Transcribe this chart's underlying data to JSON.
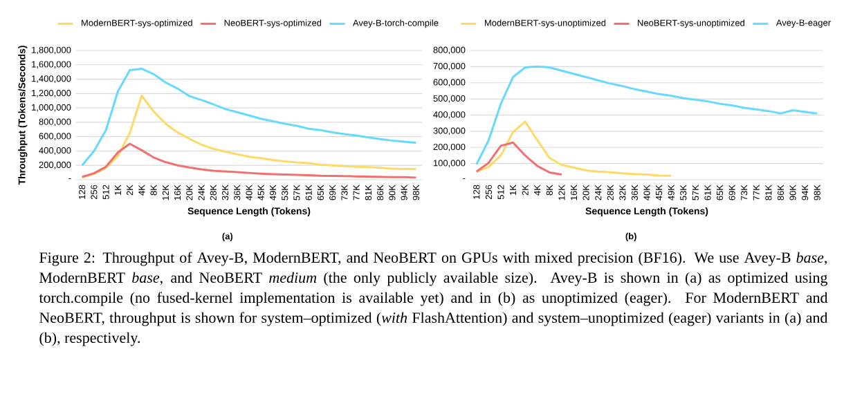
{
  "chart_data": [
    {
      "type": "line",
      "title": "(a)",
      "xlabel": "Sequence Length (Tokens)",
      "ylabel": "Throughput (Tokens/Seconds)",
      "categories": [
        "128",
        "256",
        "512",
        "1K",
        "2K",
        "4K",
        "8K",
        "12K",
        "16K",
        "20K",
        "24K",
        "28K",
        "32K",
        "36K",
        "40K",
        "45K",
        "49K",
        "53K",
        "57K",
        "61K",
        "65K",
        "69K",
        "73K",
        "77K",
        "81K",
        "86K",
        "90K",
        "94K",
        "98K"
      ],
      "series": [
        {
          "name": "ModernBERT-sys-optimized",
          "color": "#ffd966",
          "values": [
            30000,
            80000,
            165000,
            330000,
            650000,
            1170000,
            950000,
            780000,
            660000,
            570000,
            490000,
            430000,
            390000,
            355000,
            320000,
            300000,
            275000,
            255000,
            240000,
            230000,
            210000,
            200000,
            190000,
            180000,
            175000,
            165000,
            155000,
            150000,
            150000
          ]
        },
        {
          "name": "NeoBERT-sys-optimized",
          "color": "#f07070",
          "values": [
            40000,
            90000,
            180000,
            380000,
            500000,
            410000,
            310000,
            245000,
            200000,
            170000,
            145000,
            125000,
            115000,
            105000,
            95000,
            85000,
            78000,
            72000,
            68000,
            62000,
            56000,
            54000,
            50000,
            46000,
            44000,
            40000,
            36000,
            35000,
            30000
          ]
        },
        {
          "name": "Avey-B-torch-compile",
          "color": "#66d9ff",
          "values": [
            200000,
            400000,
            690000,
            1230000,
            1525000,
            1545000,
            1470000,
            1355000,
            1270000,
            1165000,
            1110000,
            1050000,
            985000,
            940000,
            895000,
            850000,
            815000,
            780000,
            750000,
            710000,
            690000,
            660000,
            635000,
            615000,
            590000,
            565000,
            545000,
            530000,
            515000
          ]
        }
      ],
      "ylim": [
        0,
        1800000
      ],
      "yticks": [
        {
          "value": 0,
          "label": "-"
        },
        {
          "value": 200000,
          "label": "200,000"
        },
        {
          "value": 400000,
          "label": "400,000"
        },
        {
          "value": 600000,
          "label": "600,000"
        },
        {
          "value": 800000,
          "label": "800,000"
        },
        {
          "value": 1000000,
          "label": "1,000,000"
        },
        {
          "value": 1200000,
          "label": "1,200,000"
        },
        {
          "value": 1400000,
          "label": "1,400,000"
        },
        {
          "value": 1600000,
          "label": "1,600,000"
        },
        {
          "value": 1800000,
          "label": "1,800,000"
        }
      ],
      "grid": "y",
      "legend": "top",
      "annotations": [
        "Figure 2: Throughput of Avey-B, ModernBERT, and NeoBERT on GPUs with mixed precision (BF16). We use Avey-B *base*, ModernBERT *base*, and NeoBERT *medium* (the only publicly available size). Avey-B is shown in (a) as optimized using torch.compile (no fused-kernel implementation is available yet) and in (b) as unoptimized (eager). For ModernBERT and NeoBERT, throughput is shown for system–optimized (*with* FlashAttention) and system–unoptimized (eager) variants in (a) and (b), respectively."
      ]
    },
    {
      "type": "line",
      "title": "(b)",
      "xlabel": "Sequence Length (Tokens)",
      "categories": [
        "128",
        "256",
        "512",
        "1K",
        "2K",
        "4K",
        "8K",
        "12K",
        "16K",
        "20K",
        "24K",
        "28K",
        "32K",
        "36K",
        "40K",
        "45K",
        "49K",
        "53K",
        "57K",
        "61K",
        "65K",
        "69K",
        "73K",
        "77K",
        "81K",
        "86K",
        "90K",
        "94K",
        "98K"
      ],
      "series": [
        {
          "name": "ModernBERT-sys-unoptimized",
          "color": "#ffd966",
          "values": [
            50000,
            80000,
            150000,
            295000,
            360000,
            245000,
            135000,
            92000,
            75000,
            58000,
            50000,
            46000,
            40000,
            35000,
            32000,
            26000,
            25000,
            null,
            null,
            null,
            null,
            null,
            null,
            null,
            null,
            null,
            null,
            null,
            null
          ]
        },
        {
          "name": "NeoBERT-sys-unoptimized",
          "color": "#f07070",
          "values": [
            50000,
            105000,
            210000,
            230000,
            150000,
            85000,
            45000,
            32000,
            null,
            null,
            null,
            null,
            null,
            null,
            null,
            null,
            null,
            null,
            null,
            null,
            null,
            null,
            null,
            null,
            null,
            null,
            null,
            null,
            null
          ]
        },
        {
          "name": "Avey-B-eager",
          "color": "#66d9ff",
          "values": [
            95000,
            245000,
            470000,
            635000,
            695000,
            700000,
            695000,
            675000,
            655000,
            635000,
            615000,
            595000,
            580000,
            560000,
            545000,
            530000,
            520000,
            505000,
            495000,
            485000,
            470000,
            460000,
            445000,
            435000,
            425000,
            410000,
            430000,
            420000,
            410000
          ]
        }
      ],
      "ylim": [
        0,
        800000
      ],
      "yticks": [
        {
          "value": 0,
          "label": "-"
        },
        {
          "value": 100000,
          "label": "100,000"
        },
        {
          "value": 200000,
          "label": "200,000"
        },
        {
          "value": 300000,
          "label": "300,000"
        },
        {
          "value": 400000,
          "label": "400,000"
        },
        {
          "value": 500000,
          "label": "500,000"
        },
        {
          "value": 600000,
          "label": "600,000"
        },
        {
          "value": 700000,
          "label": "700,000"
        },
        {
          "value": 800000,
          "label": "800,000"
        }
      ],
      "grid": "y",
      "legend": "top"
    }
  ]
}
